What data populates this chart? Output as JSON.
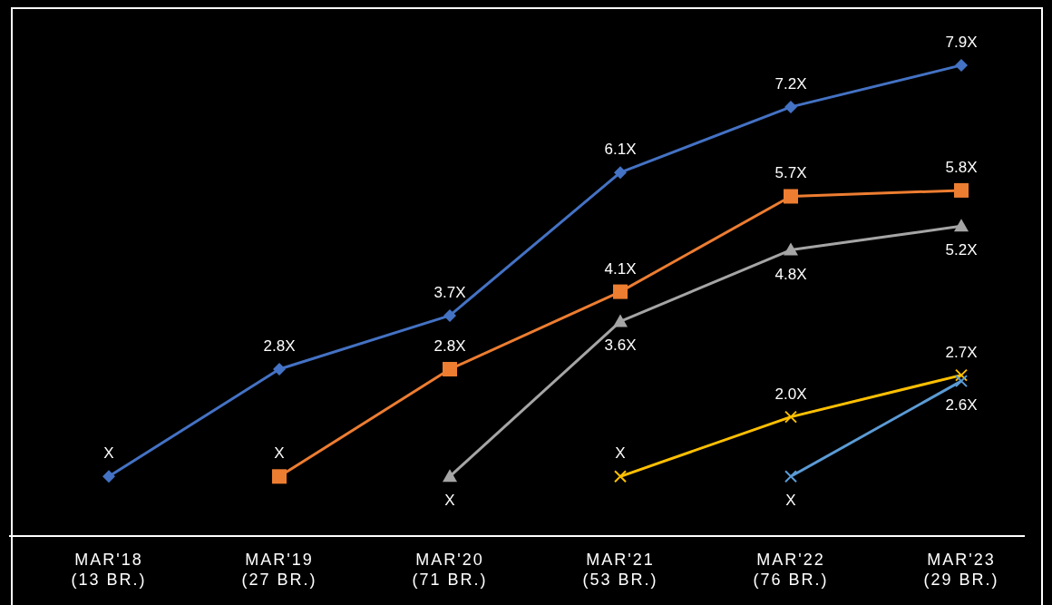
{
  "chart_data": {
    "type": "line",
    "categories": [
      "MAR'18\n(13 BR.)",
      "MAR'19\n(27 BR.)",
      "MAR'20\n(71 BR.)",
      "MAR'21\n(53 BR.)",
      "MAR'22\n(76 BR.)",
      "MAR'23\n(29 BR.)"
    ],
    "tick_labels": "x",
    "series": [
      {
        "color": "#4472c4",
        "marker": "diamond",
        "values": [
          1,
          2.8,
          3.7,
          6.1,
          7.2,
          7.9
        ],
        "value_labels": [
          "X",
          "2.8X",
          "3.7X",
          "6.1X",
          "7.2X",
          "7.9X"
        ]
      },
      {
        "color": "#ed7d31",
        "marker": "square",
        "values": [
          null,
          1,
          2.8,
          4.1,
          5.7,
          5.8
        ],
        "value_labels": [
          null,
          "X",
          "2.8X",
          "4.1X",
          "5.7X",
          "5.8X"
        ]
      },
      {
        "color": "#a5a5a5",
        "marker": "triangle",
        "values": [
          null,
          null,
          1,
          3.6,
          4.8,
          5.2
        ],
        "value_labels": [
          null,
          null,
          "X",
          "3.6X",
          "4.8X",
          "5.2X"
        ]
      },
      {
        "color": "#ffc000",
        "marker": "cross",
        "values": [
          null,
          null,
          null,
          1,
          2.0,
          2.7
        ],
        "value_labels": [
          null,
          null,
          null,
          "X",
          "2.0X",
          "2.7X"
        ]
      },
      {
        "color": "#5b9bd5",
        "marker": "cross",
        "values": [
          null,
          null,
          null,
          null,
          1,
          2.6
        ],
        "value_labels": [
          null,
          null,
          null,
          null,
          "X",
          "2.6X"
        ]
      }
    ]
  }
}
